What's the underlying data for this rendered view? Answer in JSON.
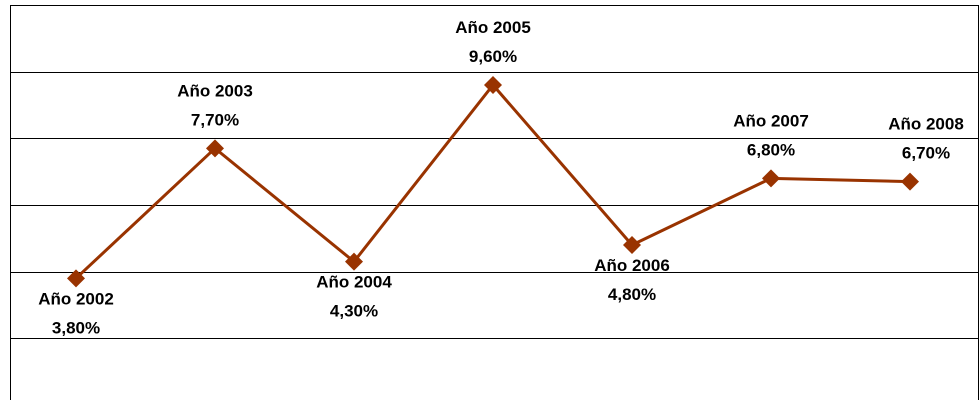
{
  "chart_data": {
    "type": "line",
    "title": "",
    "xlabel": "",
    "ylabel": "",
    "ylim": [
      0,
      12
    ],
    "grid": true,
    "legend": "none",
    "categories": [
      "Año 2002",
      "Año 2003",
      "Año 2004",
      "Año 2005",
      "Año 2006",
      "Año 2007",
      "Año 2008"
    ],
    "values": [
      3.8,
      7.7,
      4.3,
      9.6,
      4.8,
      6.8,
      6.7
    ],
    "value_labels": [
      "3,80%",
      "7,70%",
      "4,30%",
      "9,60%",
      "4,80%",
      "6,80%",
      "6,70%"
    ],
    "label_positions": [
      "below",
      "above",
      "below",
      "above",
      "below",
      "above",
      "above"
    ],
    "series_color": "#993300",
    "gridline_color": "#000000"
  }
}
